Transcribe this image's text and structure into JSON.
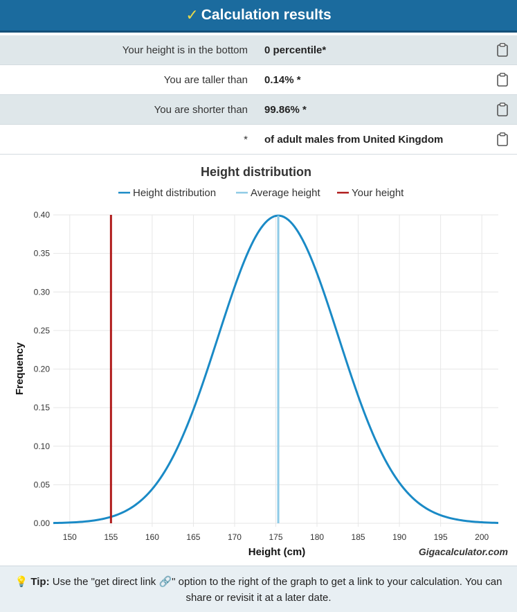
{
  "header": {
    "title": "Calculation results"
  },
  "results": [
    {
      "label": "Your height is in the bottom",
      "value": "0 percentile*"
    },
    {
      "label": "You are taller than",
      "value": "0.14% *"
    },
    {
      "label": "You are shorter than",
      "value": "99.86% *"
    },
    {
      "label": "*",
      "value": "of adult males from United Kingdom"
    }
  ],
  "chart_data": {
    "type": "line",
    "title": "Height distribution",
    "xlabel": "Height (cm)",
    "ylabel": "Frequency",
    "xlim": [
      148,
      202
    ],
    "ylim": [
      0,
      0.4
    ],
    "xticks": [
      "150",
      "155",
      "160",
      "165",
      "170",
      "175",
      "180",
      "185",
      "190",
      "195",
      "200"
    ],
    "yticks": [
      "0.00",
      "0.05",
      "0.10",
      "0.15",
      "0.20",
      "0.25",
      "0.30",
      "0.35",
      "0.40"
    ],
    "legend": [
      "Height distribution",
      "Average height",
      "Your height"
    ],
    "legend_position": "top",
    "grid": true,
    "series": [
      {
        "name": "Height distribution",
        "color": "#1a8ac6",
        "distribution": "normal",
        "mean": 175.3,
        "peak": 0.399
      },
      {
        "name": "Average height",
        "color": "#8ecae6",
        "x": 175.3
      },
      {
        "name": "Your height",
        "color": "#b01c1c",
        "x": 155
      }
    ],
    "credit": "Gigacalculator.com"
  },
  "tip": {
    "label": "Tip:",
    "text_before": " Use the \"get direct link ",
    "text_after": "\" option to the right of the graph to get a link to your calculation. You can share or revisit it at a later date.",
    "link_glyph": "🔗"
  }
}
